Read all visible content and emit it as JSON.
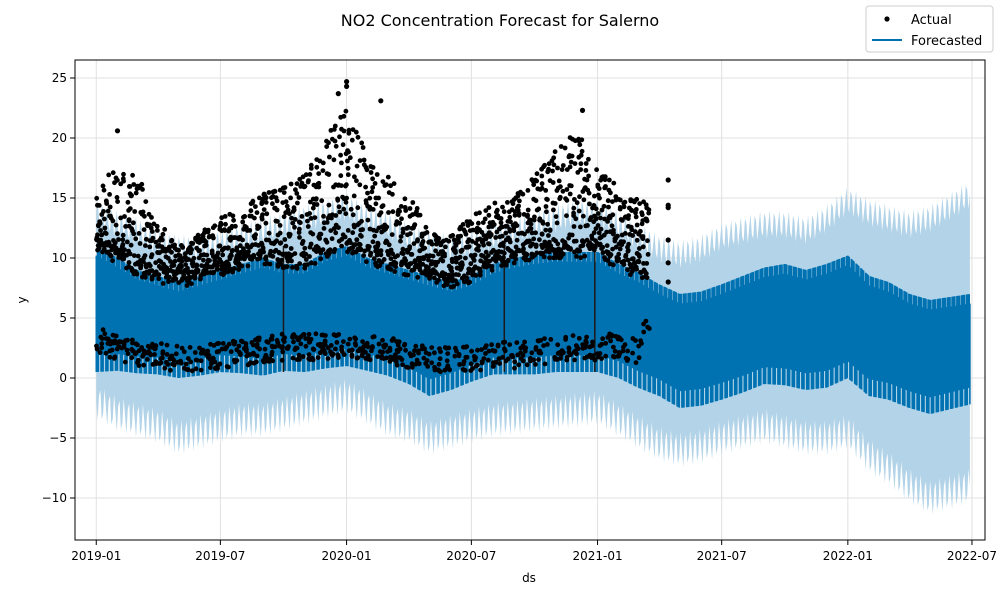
{
  "chart_data": {
    "type": "line",
    "title": "NO2 Concentration Forecast for Salerno",
    "xlabel": "ds",
    "ylabel": "y",
    "x_range": [
      "2018-12-01",
      "2022-07-20"
    ],
    "ylim": [
      -13.5,
      26.5
    ],
    "grid": true,
    "legend_position": "top-right",
    "x_ticks": [
      "2019-01",
      "2019-07",
      "2020-01",
      "2020-07",
      "2021-01",
      "2021-07",
      "2022-01",
      "2022-07"
    ],
    "y_ticks": [
      -10,
      -5,
      0,
      5,
      10,
      15,
      20,
      25
    ],
    "history_start": "2019-01-01",
    "history_end": "2021-04-15",
    "forecast_end": "2022-06-28",
    "gaps": [
      "2019-10-01",
      "2020-08-18",
      "2020-12-28"
    ],
    "colors": {
      "forecast": "#0072b2",
      "interval": "#b3d4e8",
      "actual": "#000000",
      "grid": "#e0e0e0"
    },
    "series": [
      {
        "name": "Actual",
        "kind": "scatter",
        "anchor_dates": [
          "2019-01-01",
          "2019-02-01",
          "2019-03-01",
          "2019-04-01",
          "2019-05-01",
          "2019-06-01",
          "2019-07-01",
          "2019-08-01",
          "2019-09-01",
          "2019-10-01",
          "2019-11-01",
          "2019-12-01",
          "2020-01-01",
          "2020-02-01",
          "2020-03-01",
          "2020-04-01",
          "2020-05-01",
          "2020-06-01",
          "2020-07-01",
          "2020-08-01",
          "2020-09-01",
          "2020-10-01",
          "2020-11-01",
          "2020-12-01",
          "2021-01-01",
          "2021-02-01",
          "2021-03-01",
          "2021-04-15"
        ],
        "upper_envelope": [
          15.5,
          18,
          17,
          13,
          11,
          12,
          13.5,
          14,
          15.5,
          16,
          17,
          20,
          23,
          18,
          17,
          16,
          12,
          12,
          13.5,
          15,
          15,
          17,
          19,
          21,
          18,
          16,
          15,
          16.5
        ],
        "lower_envelope": [
          2,
          1.5,
          1,
          0.8,
          0.5,
          0.6,
          0.8,
          1,
          1.2,
          1.5,
          1.5,
          1.5,
          1.8,
          1.5,
          1.2,
          0.8,
          0.5,
          0.5,
          0.5,
          0.8,
          0.8,
          1,
          1.2,
          1.5,
          1.5,
          1.5,
          1.2,
          8
        ],
        "max_value": 24.7
      },
      {
        "name": "Forecasted",
        "kind": "line",
        "anchor_dates": [
          "2019-01-01",
          "2019-02-01",
          "2019-03-01",
          "2019-04-01",
          "2019-05-01",
          "2019-06-01",
          "2019-07-01",
          "2019-08-01",
          "2019-09-01",
          "2019-10-01",
          "2019-11-01",
          "2019-12-01",
          "2020-01-01",
          "2020-02-01",
          "2020-03-01",
          "2020-04-01",
          "2020-05-01",
          "2020-06-01",
          "2020-07-01",
          "2020-08-01",
          "2020-09-01",
          "2020-10-01",
          "2020-11-01",
          "2020-12-01",
          "2021-01-01",
          "2021-02-01",
          "2021-03-01",
          "2021-04-01",
          "2021-05-01",
          "2021-06-01",
          "2021-07-01",
          "2021-08-01",
          "2021-09-01",
          "2021-10-01",
          "2021-11-01",
          "2021-12-01",
          "2022-01-01",
          "2022-02-01",
          "2022-03-01",
          "2022-04-01",
          "2022-05-01",
          "2022-06-28"
        ],
        "upper": [
          11,
          10,
          9,
          8.5,
          8,
          8.5,
          9,
          9.5,
          10,
          9.5,
          9.5,
          10.5,
          11,
          10,
          9.5,
          9,
          8.5,
          8,
          8.5,
          9.5,
          10,
          10.3,
          10.5,
          10.5,
          10.5,
          9.5,
          8.8,
          7.8,
          7,
          7.2,
          7.8,
          8.5,
          9.2,
          9.5,
          9,
          9.5,
          10.2,
          8.5,
          8,
          7,
          6.5,
          7
        ],
        "lower": [
          0.5,
          0.6,
          0.4,
          0.3,
          0,
          0.2,
          0.5,
          0.4,
          0.2,
          0.6,
          0.5,
          0.8,
          1,
          0.6,
          0.2,
          -0.5,
          -1.5,
          -1,
          -0.3,
          0.3,
          0.3,
          0.3,
          0.5,
          0.5,
          0.5,
          0,
          -0.8,
          -1.5,
          -2.5,
          -2.3,
          -1.8,
          -1.2,
          -0.5,
          -0.6,
          -1,
          -0.8,
          0,
          -1.5,
          -1.8,
          -2.5,
          -3,
          -2.2
        ],
        "interval_upper": [
          15,
          14,
          13.5,
          12.5,
          12,
          12,
          12.5,
          13,
          13.5,
          14,
          14.5,
          15,
          15.5,
          14.5,
          14,
          13,
          12.5,
          12,
          12.5,
          13,
          13.5,
          14,
          14.5,
          15,
          15,
          14,
          13,
          12,
          11.5,
          12,
          13,
          13.5,
          14,
          14,
          13.5,
          14.5,
          16,
          15,
          14.5,
          14,
          14.5,
          16.5
        ],
        "interval_lower": [
          -3.5,
          -4.5,
          -5,
          -5.5,
          -6.5,
          -6,
          -5.5,
          -5,
          -5,
          -4.5,
          -4,
          -3.5,
          -3,
          -4,
          -5,
          -5.5,
          -6.5,
          -6,
          -5.5,
          -5,
          -4.8,
          -4.6,
          -4.4,
          -4.2,
          -4,
          -5,
          -6,
          -7,
          -7.5,
          -7.2,
          -6.5,
          -6,
          -5.5,
          -6,
          -6.5,
          -6.5,
          -6,
          -8,
          -9,
          -10.5,
          -11.5,
          -10.5
        ]
      }
    ]
  }
}
